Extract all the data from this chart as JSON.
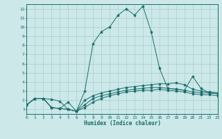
{
  "xlabel": "Humidex (Indice chaleur)",
  "xlim": [
    0,
    23
  ],
  "ylim": [
    0.5,
    12.5
  ],
  "xticks": [
    0,
    1,
    2,
    3,
    4,
    5,
    6,
    7,
    8,
    9,
    10,
    11,
    12,
    13,
    14,
    15,
    16,
    17,
    18,
    19,
    20,
    21,
    22,
    23
  ],
  "yticks": [
    1,
    2,
    3,
    4,
    5,
    6,
    7,
    8,
    9,
    10,
    11,
    12
  ],
  "bg_color": "#cce8e8",
  "line_color": "#1a6b6b",
  "grid_color": "#aacfcf",
  "series": [
    {
      "x": [
        0,
        1,
        2,
        3,
        4,
        5,
        6,
        7,
        8,
        9,
        10,
        11,
        12,
        13,
        14,
        15,
        16,
        17,
        18,
        19,
        20,
        21,
        22,
        23
      ],
      "y": [
        1.5,
        2.2,
        2.2,
        2.1,
        1.9,
        1.0,
        0.8,
        3.0,
        8.2,
        9.5,
        10.0,
        11.3,
        12.0,
        11.3,
        12.3,
        9.5,
        5.5,
        3.3,
        3.2,
        3.1,
        4.6,
        3.3,
        2.8,
        2.8
      ]
    },
    {
      "x": [
        0,
        1,
        2,
        3,
        4,
        5,
        6,
        7,
        8,
        9,
        10,
        11,
        12,
        13,
        14,
        15,
        16,
        17,
        18,
        19,
        20,
        21,
        22,
        23
      ],
      "y": [
        1.5,
        2.2,
        2.2,
        1.2,
        1.1,
        1.8,
        0.8,
        2.0,
        2.5,
        2.8,
        3.0,
        3.2,
        3.4,
        3.5,
        3.6,
        3.7,
        3.8,
        3.8,
        3.9,
        3.7,
        3.2,
        3.0,
        2.9,
        2.8
      ]
    },
    {
      "x": [
        0,
        1,
        2,
        3,
        4,
        5,
        6,
        7,
        8,
        9,
        10,
        11,
        12,
        13,
        14,
        15,
        16,
        17,
        18,
        19,
        20,
        21,
        22,
        23
      ],
      "y": [
        1.5,
        2.2,
        2.2,
        1.2,
        1.1,
        1.0,
        0.8,
        1.5,
        2.2,
        2.5,
        2.7,
        2.9,
        3.1,
        3.2,
        3.3,
        3.4,
        3.4,
        3.3,
        3.2,
        3.1,
        2.9,
        2.8,
        2.8,
        2.7
      ]
    },
    {
      "x": [
        0,
        1,
        2,
        3,
        4,
        5,
        6,
        7,
        8,
        9,
        10,
        11,
        12,
        13,
        14,
        15,
        16,
        17,
        18,
        19,
        20,
        21,
        22,
        23
      ],
      "y": [
        1.5,
        2.2,
        2.2,
        1.2,
        1.1,
        1.0,
        0.8,
        1.2,
        1.8,
        2.2,
        2.5,
        2.7,
        2.9,
        3.0,
        3.1,
        3.1,
        3.2,
        3.1,
        3.0,
        2.9,
        2.7,
        2.6,
        2.6,
        2.5
      ]
    }
  ]
}
